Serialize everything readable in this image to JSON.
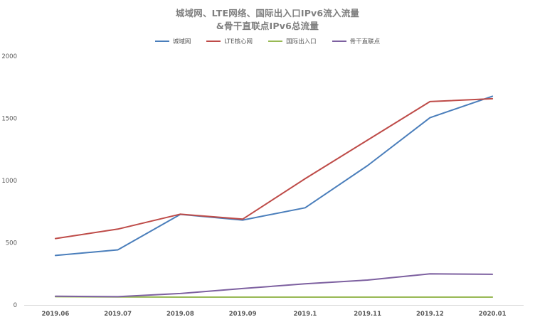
{
  "chart_data": {
    "type": "line",
    "title_line_1": "城域网、LTE网络、国际出入口IPv6流入流量",
    "title_line_2": "&骨干直联点IPv6总流量",
    "categories": [
      "2019.06",
      "2019.07",
      "2019.08",
      "2019.09",
      "2019.1",
      "2019.11",
      "2019.12",
      "2020.01"
    ],
    "y_ticks": [
      "0",
      "500",
      "1000",
      "1500",
      "2000"
    ],
    "ylim": [
      0,
      2000
    ],
    "grid": false,
    "legend_position": "top",
    "series": [
      {
        "name": "城域网",
        "color": "#4a7ebb",
        "values": [
          398,
          443,
          728,
          682,
          781,
          1120,
          1505,
          1678
        ]
      },
      {
        "name": "LTE核心网",
        "color": "#be4b48",
        "values": [
          534,
          610,
          730,
          690,
          1015,
          1325,
          1635,
          1658
        ]
      },
      {
        "name": "国际出入口",
        "color": "#98b954",
        "values": [
          66,
          64,
          63,
          63,
          63,
          63,
          63,
          63
        ]
      },
      {
        "name": "骨干直联点",
        "color": "#7d60a0",
        "values": [
          70,
          66,
          92,
          132,
          170,
          200,
          250,
          246
        ]
      }
    ]
  }
}
